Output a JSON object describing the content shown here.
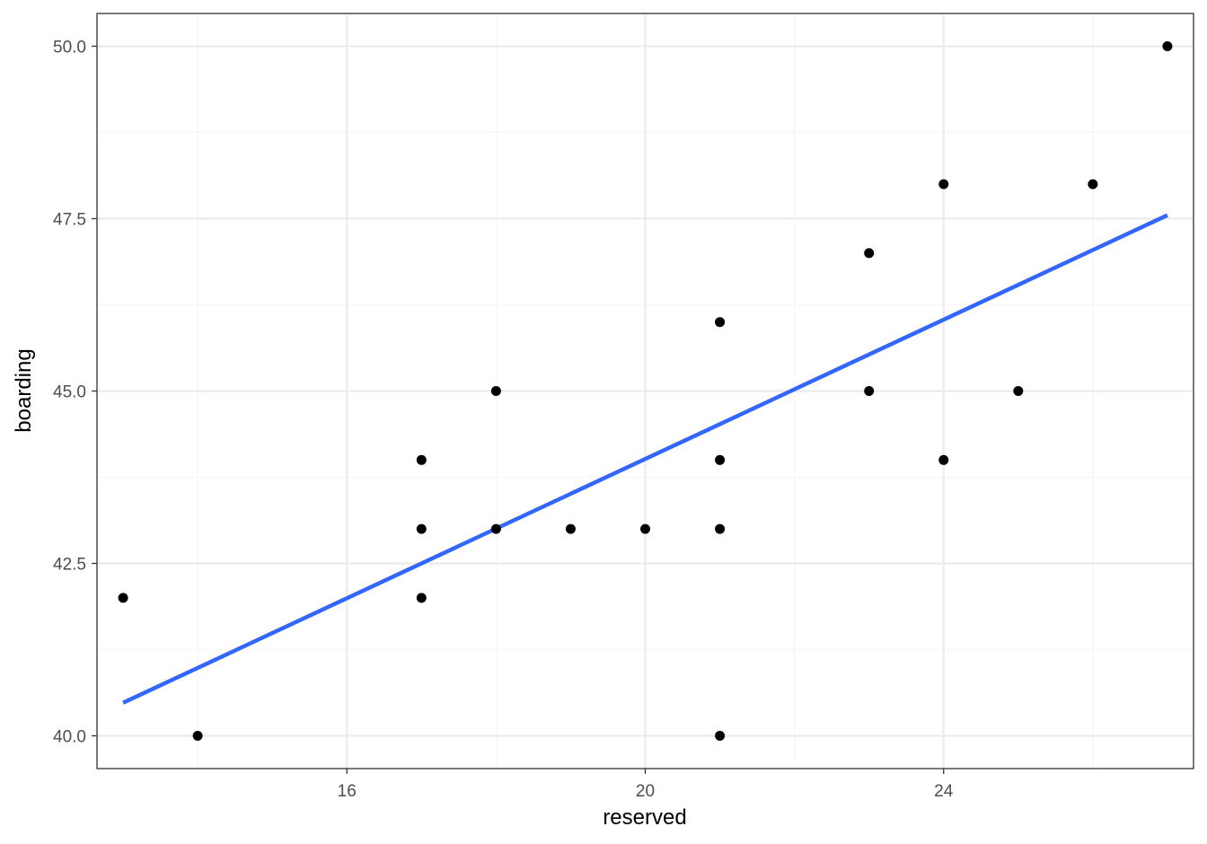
{
  "chart_data": {
    "type": "scatter",
    "title": "",
    "xlabel": "reserved",
    "ylabel": "boarding",
    "xlim": [
      12.65,
      27.35
    ],
    "ylim": [
      39.525,
      50.475
    ],
    "x_major_ticks": [
      16,
      20,
      24
    ],
    "x_minor_ticks": [
      14,
      18,
      22,
      26
    ],
    "y_major_ticks": [
      40.0,
      42.5,
      45.0,
      47.5,
      50.0
    ],
    "y_minor_ticks": [
      41.25,
      43.75,
      46.25,
      48.75
    ],
    "x_tick_labels": [
      "16",
      "20",
      "24"
    ],
    "y_tick_labels": [
      "40.0",
      "42.5",
      "45.0",
      "47.5",
      "50.0"
    ],
    "grid": true,
    "series": [
      {
        "kind": "points",
        "x": [
          13,
          14,
          17,
          17,
          17,
          18,
          18,
          19,
          20,
          21,
          21,
          21,
          21,
          23,
          23,
          24,
          24,
          25,
          26,
          27
        ],
        "y": [
          42,
          40,
          42,
          43,
          44,
          43,
          45,
          43,
          43,
          40,
          43,
          44,
          46,
          45,
          47,
          44,
          48,
          45,
          48,
          50
        ]
      },
      {
        "kind": "fit-line",
        "x": [
          13,
          27
        ],
        "y": [
          40.48,
          47.55
        ]
      }
    ],
    "colors": {
      "points": "#000000",
      "fit_line": "#3366ff",
      "grid_major": "#ebebeb",
      "grid_minor": "#f5f5f5",
      "panel_border": "#333333",
      "tick_text": "#4d4d4d"
    }
  }
}
